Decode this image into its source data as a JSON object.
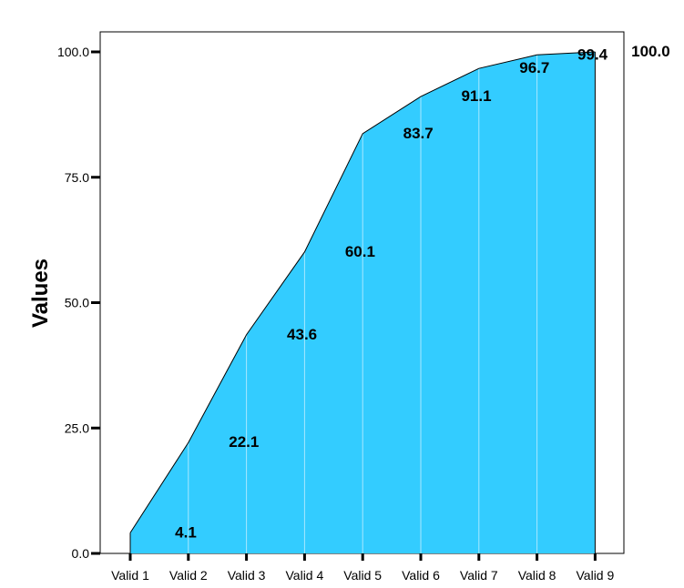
{
  "chart_data": {
    "type": "area",
    "categories": [
      "Valid 1",
      "Valid 2",
      "Valid 3",
      "Valid 4",
      "Valid 5",
      "Valid 6",
      "Valid 7",
      "Valid 8",
      "Valid 9"
    ],
    "values": [
      4.1,
      22.1,
      43.6,
      60.1,
      83.7,
      91.1,
      96.7,
      99.4,
      100.0
    ],
    "data_labels": [
      "4.1",
      "22.1",
      "43.6",
      "60.1",
      "83.7",
      "91.1",
      "96.7",
      "99.4",
      "100.0"
    ],
    "ylabel": "Values",
    "xlabel": "",
    "ylim": [
      0,
      100
    ],
    "yticks": [
      0,
      25,
      50,
      75,
      100
    ],
    "ytick_labels": [
      "0.0",
      "25.0",
      "50.0",
      "75.0",
      "100.0"
    ],
    "grid": false,
    "fill_color": "#33ccff",
    "line_color": "#000000"
  }
}
